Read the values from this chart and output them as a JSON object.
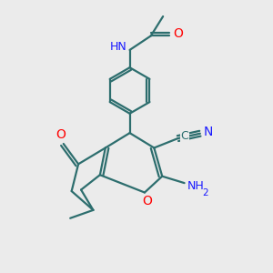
{
  "bg_color": "#ebebeb",
  "bond_color": "#2d6e6e",
  "bond_width": 1.6,
  "atom_colors": {
    "N": "#1a1aff",
    "O": "#ff0000",
    "C": "#2d6e6e",
    "default": "#2d6e6e"
  },
  "font_size": 9
}
